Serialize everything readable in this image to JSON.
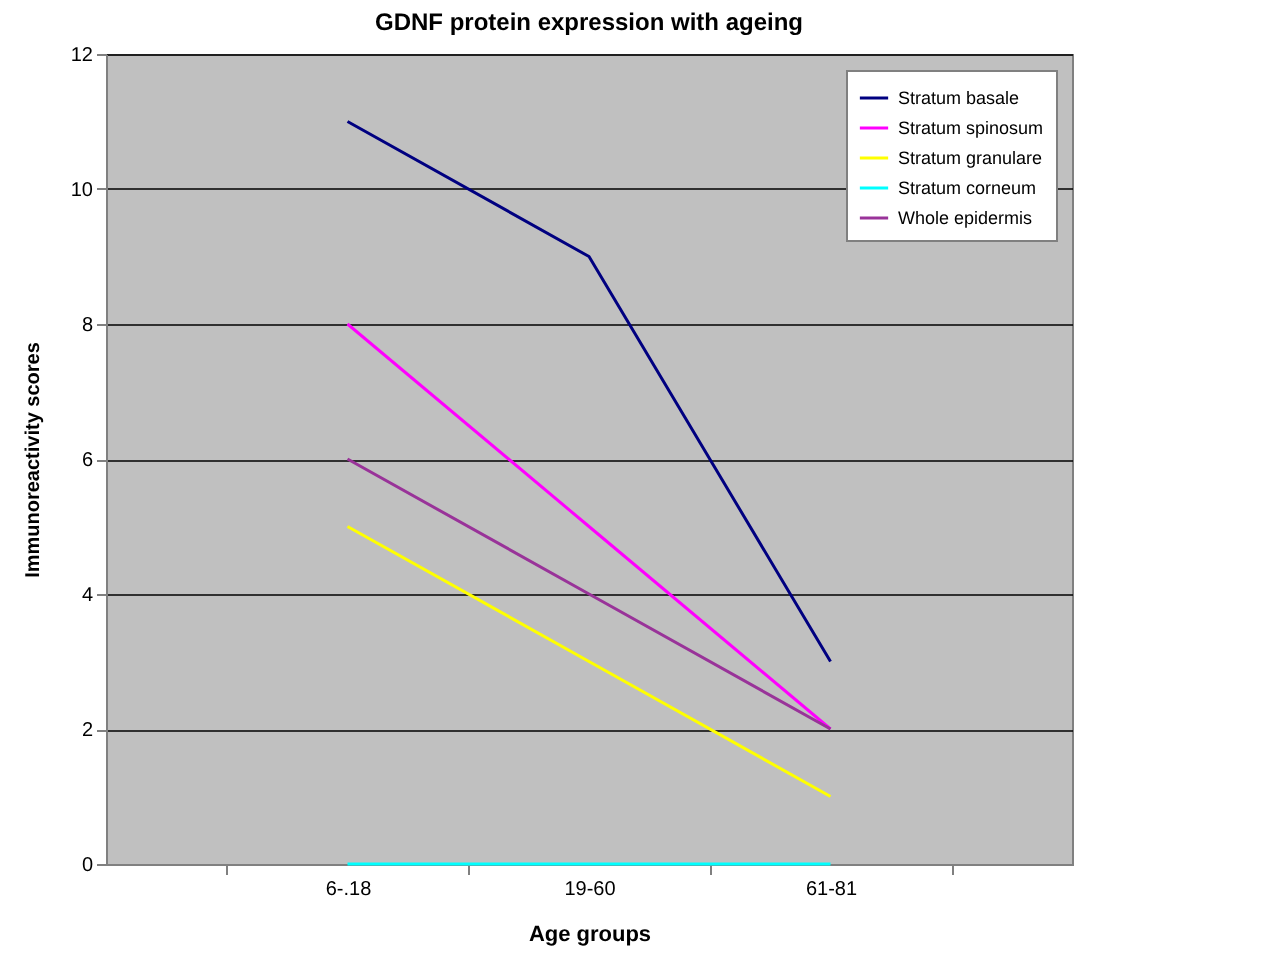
{
  "chart_data": {
    "type": "line",
    "title": "GDNF protein expression with ageing",
    "xlabel": "Age groups",
    "ylabel": "Immunoreactivity scores",
    "categories": [
      "6-.18",
      "19-60",
      "61-81"
    ],
    "series": [
      {
        "name": "Stratum basale",
        "color": "#000080",
        "values": [
          11,
          9,
          3
        ]
      },
      {
        "name": "Stratum spinosum",
        "color": "#ff00ff",
        "values": [
          8,
          5,
          2
        ]
      },
      {
        "name": "Stratum granulare",
        "color": "#ffff00",
        "values": [
          5,
          3,
          1
        ]
      },
      {
        "name": "Stratum corneum",
        "color": "#00ffff",
        "values": [
          0,
          0,
          0
        ]
      },
      {
        "name": "Whole epidermis",
        "color": "#993399",
        "values": [
          6,
          4,
          2
        ]
      }
    ],
    "ylim": [
      0,
      12
    ],
    "yticks": [
      0,
      2,
      4,
      6,
      8,
      10,
      12
    ],
    "grid": "y",
    "legend": "top right",
    "marker": "none",
    "line_style": "solid"
  }
}
